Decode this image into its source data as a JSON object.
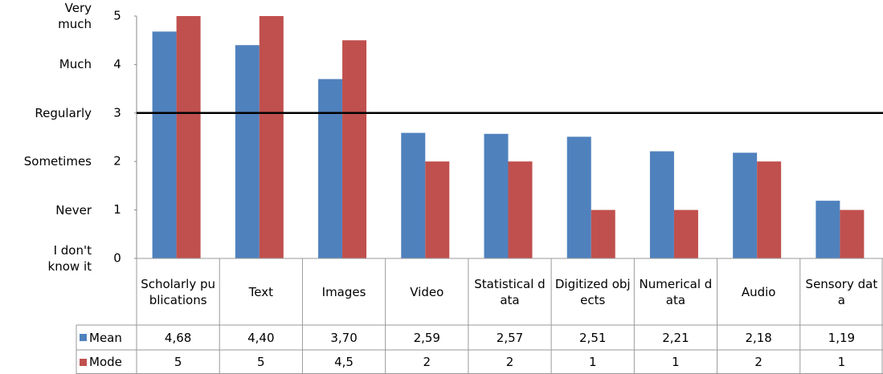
{
  "chart_data": {
    "type": "bar",
    "categories": [
      "Scholarly publications",
      "Text",
      "Images",
      "Video",
      "Statistical data",
      "Digitized objects",
      "Numerical data",
      "Audio",
      "Sensory data"
    ],
    "series": [
      {
        "name": "Mean",
        "color": "#4f81bd",
        "values": [
          4.68,
          4.4,
          3.7,
          2.59,
          2.57,
          2.51,
          2.21,
          2.18,
          1.19
        ],
        "value_labels": [
          "4,68",
          "4,40",
          "3,70",
          "2,59",
          "2,57",
          "2,51",
          "2,21",
          "2,18",
          "1,19"
        ]
      },
      {
        "name": "Mode",
        "color": "#c0504d",
        "values": [
          5,
          5,
          4.5,
          2,
          2,
          1,
          1,
          2,
          1
        ],
        "value_labels": [
          "5",
          "5",
          "4,5",
          "2",
          "2",
          "1",
          "1",
          "2",
          "1"
        ]
      }
    ],
    "ylim": [
      0,
      5
    ],
    "yticks": [
      0,
      1,
      2,
      3,
      4,
      5
    ],
    "ytick_names": [
      "I don't know it",
      "Never",
      "Sometimes",
      "Regularly",
      "Much",
      "Very much"
    ],
    "reference_line": 3
  }
}
